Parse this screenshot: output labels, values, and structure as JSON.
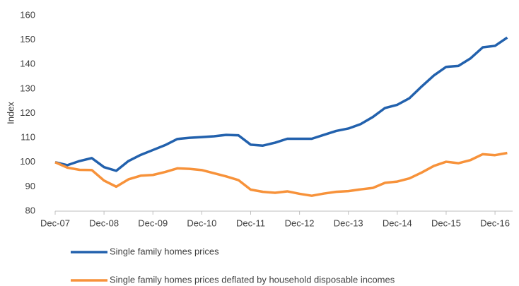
{
  "chart_data": {
    "type": "line",
    "y_label": "Index",
    "categories": [
      "Dec-07",
      null,
      null,
      null,
      "Dec-08",
      null,
      null,
      null,
      "Dec-09",
      null,
      null,
      null,
      "Dec-10",
      null,
      null,
      null,
      "Dec-11",
      null,
      null,
      null,
      "Dec-12",
      null,
      null,
      null,
      "Dec-13",
      null,
      null,
      null,
      "Dec-14",
      null,
      null,
      null,
      "Dec-15",
      null,
      null,
      null,
      "Dec-16",
      null
    ],
    "series": [
      {
        "name": "Single family homes prices",
        "color": "#2261ad",
        "values": [
          100,
          98.8,
          100.5,
          101.7,
          98,
          96.5,
          100.5,
          103,
          105,
          107,
          109.5,
          110,
          110.3,
          110.6,
          111.2,
          111,
          107.2,
          106.8,
          108,
          109.6,
          109.6,
          109.6,
          111.2,
          112.8,
          113.8,
          115.6,
          118.5,
          122.2,
          123.5,
          126.2,
          131,
          135.5,
          139,
          139.4,
          142.5,
          147,
          147.6,
          151
        ]
      },
      {
        "name": "Single family homes prices deflated by household disposable incomes",
        "color": "#f7923a",
        "values": [
          100,
          97.8,
          96.9,
          96.8,
          92.5,
          90,
          93,
          94.5,
          94.8,
          96,
          97.5,
          97.3,
          96.8,
          95.5,
          94.2,
          92.7,
          88.8,
          87.9,
          87.5,
          88.1,
          87.1,
          86.3,
          87.2,
          87.9,
          88.2,
          88.9,
          89.5,
          91.6,
          92.1,
          93.4,
          95.8,
          98.5,
          100.2,
          99.6,
          100.9,
          103.3,
          102.9,
          103.8
        ]
      }
    ],
    "ylim": [
      80,
      160
    ],
    "yticks": [
      80,
      90,
      100,
      110,
      120,
      130,
      140,
      150,
      160
    ],
    "grid": false,
    "legend": "bottom"
  }
}
